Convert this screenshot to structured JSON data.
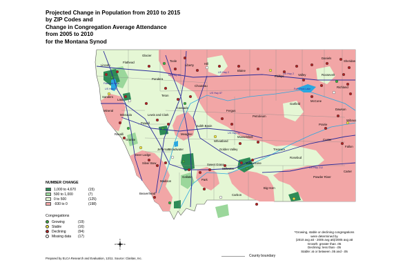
{
  "title_lines": [
    "Projected Change in Population from 2010 to 2015",
    "by ZIP Codes and",
    "Change in Congregation Average Attendance",
    "from 2005 to 2010",
    "for the Montana Synod"
  ],
  "legend": {
    "title": "NUMBER CHANGE",
    "ranges": [
      {
        "label": "1,000 to 4,670",
        "count": "(15)",
        "color": "#2e8b57"
      },
      {
        "label": "500 to 1,000",
        "count": "(7)",
        "color": "#9bd79b"
      },
      {
        "label": "0 to 500",
        "count": "(125)",
        "color": "#e5f7d5"
      },
      {
        "label": "-930 to 0",
        "count": "(198)",
        "color": "#f2a6a6"
      }
    ],
    "congregations_title": "Congregations",
    "congregations": [
      {
        "label": "Growing",
        "count": "(19)",
        "color": "#3cb043"
      },
      {
        "label": "Stable",
        "count": "(16)",
        "color": "#f0e442"
      },
      {
        "label": "Declining",
        "count": "(94)",
        "color": "#b22222"
      },
      {
        "label": "Missing data",
        "count": "(17)",
        "color": "#ffffff"
      }
    ]
  },
  "compass": {
    "n": "N",
    "s": "S",
    "e": "E",
    "w": "W"
  },
  "footnote_lines": [
    "*Growing, stable or declining congregations",
    "were determined by",
    "(2010 avg att - 2005 avg att)/2005 avg att",
    "Growth: greater than .05",
    "Declining: less than -.05",
    "Stable: at or between .05 and -.05"
  ],
  "county_boundary_label": "County boundary",
  "credit": "Prepared by ELCA Research and Evaluation, 12/11. Source: Claritas, Inc.",
  "county_labels": [
    "Lincoln",
    "Flathead",
    "Glacier",
    "Toole",
    "Liberty",
    "Hill",
    "Blaine",
    "Phillips",
    "Valley",
    "Daniels",
    "Sheridan",
    "Roosevelt",
    "Richland",
    "Sanders",
    "Lake",
    "Pondera",
    "Teton",
    "Chouteau",
    "Mineral",
    "Missoula",
    "Powell",
    "Lewis and Clark",
    "Cascade",
    "Fergus",
    "Petroleum",
    "Garfield",
    "McCone",
    "Dawson",
    "Wibaux",
    "Prairie",
    "Fallon",
    "Judith Basin",
    "Meagher",
    "Musselshell",
    "Rosebud",
    "Custer",
    "Treasure",
    "Granite",
    "Deer Lodge",
    "Jefferson",
    "Broadwater",
    "Wheatland",
    "Golden Valley",
    "Carter",
    "Powder River",
    "Silver Bow",
    "Madison",
    "Gallatin",
    "Park",
    "Sweet Grass",
    "Stillwater",
    "Yellowstone",
    "Big Horn",
    "Carbon",
    "Beaverhead",
    "Ravalli"
  ],
  "highway_labels": [
    "US Hwy 2",
    "US Hwy 2",
    "US Hwy 93",
    "US Hwy 12",
    "US Hwy 212",
    "US Hwy 87",
    "US Hwy 89"
  ],
  "water_labels": [
    "Flathead Lake",
    "Fort Peck Lake"
  ],
  "colors": {
    "decline": "#f2a6a6",
    "gain_small": "#e5f7d5",
    "gain_mid": "#9bd79b",
    "gain_high": "#2e8b57",
    "highway": "#2a2a9a",
    "water": "#2aa7e0",
    "county_line": "#888888"
  }
}
